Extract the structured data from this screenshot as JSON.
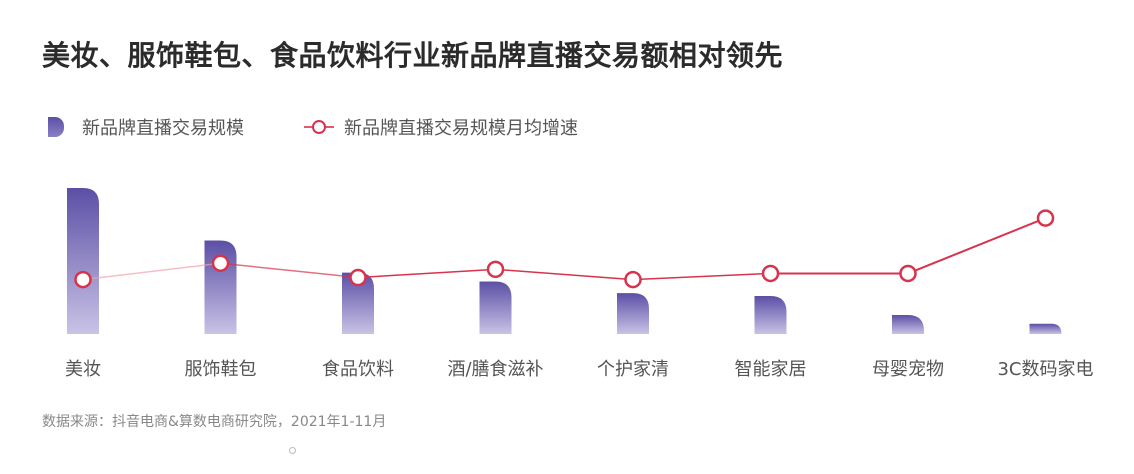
{
  "header": {
    "title": "美妆、服饰鞋包、食品饮料行业新品牌直播交易额相对领先"
  },
  "legend": {
    "bar_label": "新品牌直播交易规模",
    "line_label": "新品牌直播交易规模月均增速"
  },
  "footer": {
    "source": "数据来源：抖音电商&算数电商研究院，2021年1-11月"
  },
  "colors": {
    "bar_top": "#5b4fa5",
    "bar_bottom": "#c9c3e6",
    "line": "#d7334c",
    "line_light": "#f2a3ae"
  },
  "chart_data": {
    "type": "bar",
    "categories": [
      "美妆",
      "服饰鞋包",
      "食品饮料",
      "酒/膳食滋补",
      "个护家清",
      "智能家居",
      "母婴宠物",
      "3C数码家电"
    ],
    "series": [
      {
        "name": "新品牌直播交易规模",
        "type": "bar",
        "values": [
          100,
          64,
          42,
          36,
          28,
          26,
          13,
          7
        ]
      },
      {
        "name": "新品牌直播交易规模月均增速",
        "type": "line",
        "values": [
          48,
          56,
          49,
          53,
          48,
          51,
          51,
          78
        ]
      }
    ],
    "xlabel": "",
    "ylabel": "",
    "legend_position": "top-left",
    "grid": false
  }
}
